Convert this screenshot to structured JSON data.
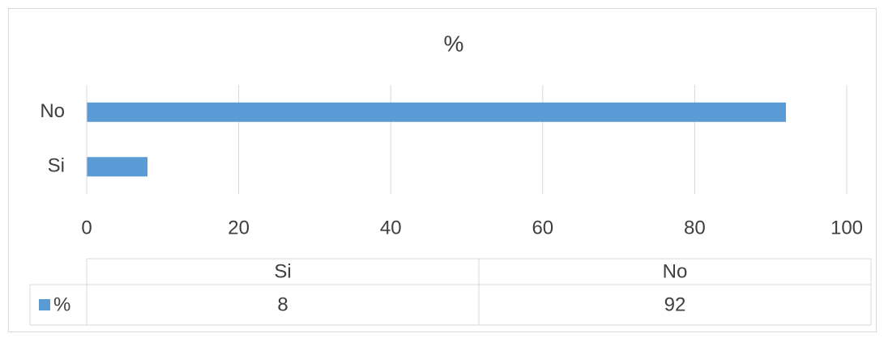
{
  "chart_data": {
    "type": "bar",
    "orientation": "horizontal",
    "title": "%",
    "categories": [
      "Si",
      "No"
    ],
    "series": [
      {
        "name": "%",
        "color": "#5b9bd5",
        "values": [
          8,
          92
        ]
      }
    ],
    "xlim": [
      0,
      100
    ],
    "xticks": [
      0,
      20,
      40,
      60,
      80,
      100
    ],
    "grid": true,
    "data_table": true
  }
}
